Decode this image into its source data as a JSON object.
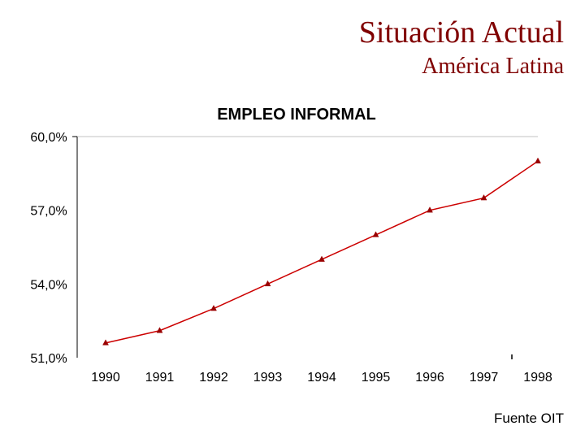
{
  "slide": {
    "title": "Situación Actual",
    "subtitle": "América Latina",
    "source": "Fuente OIT"
  },
  "colors": {
    "title": "#800000",
    "line": "#cc0000",
    "marker": "#990000"
  },
  "chart_data": {
    "type": "line",
    "title": "EMPLEO INFORMAL",
    "xlabel": "",
    "ylabel": "",
    "categories": [
      "1990",
      "1991",
      "1992",
      "1993",
      "1994",
      "1995",
      "1996",
      "1997",
      "1998"
    ],
    "series": [
      {
        "name": "Empleo informal",
        "values": [
          51.6,
          52.1,
          53.0,
          54.0,
          55.0,
          56.0,
          57.0,
          57.5,
          59.0
        ]
      }
    ],
    "ylim": [
      51,
      60
    ],
    "yticks": [
      51,
      54,
      57,
      60
    ],
    "ytick_labels": [
      "51,0%",
      "54,0%",
      "57,0%",
      "60,0%"
    ],
    "grid": false,
    "legend": "none"
  }
}
